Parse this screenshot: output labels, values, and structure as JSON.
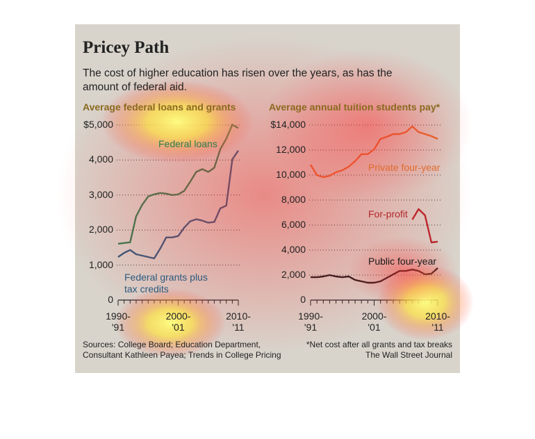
{
  "header": {
    "title": "Pricey Path",
    "subtitle": "The cost of higher education has risen over the years, as has the amount of federal aid."
  },
  "chart_data": [
    {
      "type": "line",
      "title": "Average federal loans and grants",
      "categories": [
        "1990-'91",
        null,
        null,
        null,
        null,
        null,
        null,
        null,
        null,
        null,
        "2000-'01",
        null,
        null,
        null,
        null,
        null,
        null,
        null,
        null,
        null,
        "2010-'11"
      ],
      "ylim": [
        0,
        5000
      ],
      "yticks": [
        0,
        {
          "value": 1000,
          "label": "1,000"
        },
        {
          "value": 2000,
          "label": "2,000"
        },
        {
          "value": 3000,
          "label": "3,000"
        },
        {
          "value": 4000,
          "label": "4,000"
        },
        {
          "value": 5000,
          "label": "$5,000"
        }
      ],
      "grid": true,
      "series": [
        {
          "name": "Federal loans",
          "color": "#2e7d4f",
          "values": [
            1610,
            1630,
            1650,
            2390,
            2720,
            2960,
            3020,
            3060,
            3040,
            3000,
            3020,
            3120,
            3380,
            3660,
            3740,
            3660,
            3780,
            4310,
            4610,
            5010,
            4910
          ]
        },
        {
          "name": "Federal grants plus tax credits",
          "color": "#2b5a7e",
          "values": [
            1230,
            1350,
            1430,
            1310,
            1270,
            1230,
            1190,
            1470,
            1790,
            1790,
            1830,
            2070,
            2250,
            2310,
            2270,
            2210,
            2230,
            2620,
            2700,
            4020,
            4270
          ]
        }
      ]
    },
    {
      "type": "line",
      "title": "Average annual tuition students pay*",
      "categories": [
        "1990-'91",
        null,
        null,
        null,
        null,
        null,
        null,
        null,
        null,
        null,
        "2000-'01",
        null,
        null,
        null,
        null,
        null,
        null,
        null,
        null,
        null,
        "2010-'11"
      ],
      "ylim": [
        0,
        14000
      ],
      "yticks": [
        0,
        {
          "value": 2000,
          "label": "2,000"
        },
        {
          "value": 4000,
          "label": "4,000"
        },
        {
          "value": 6000,
          "label": "6,000"
        },
        {
          "value": 8000,
          "label": "8,000"
        },
        {
          "value": 10000,
          "label": "10,000"
        },
        {
          "value": 12000,
          "label": "12,000"
        },
        {
          "value": 14000,
          "label": "$14,000"
        }
      ],
      "grid": true,
      "series": [
        {
          "name": "Private four-year",
          "color": "#e06a2c",
          "values": [
            10830,
            10000,
            9830,
            9940,
            10220,
            10390,
            10670,
            11110,
            11670,
            11670,
            12060,
            12890,
            13060,
            13280,
            13280,
            13440,
            13890,
            13440,
            13280,
            13110,
            12890
          ]
        },
        {
          "name": "For-profit",
          "color": "#b5262a",
          "values": [
            null,
            null,
            null,
            null,
            null,
            null,
            null,
            null,
            null,
            null,
            null,
            null,
            null,
            null,
            null,
            null,
            6440,
            7280,
            6780,
            4610,
            4670
          ]
        },
        {
          "name": "Public four-year",
          "color": "#1a1a1a",
          "values": [
            1830,
            1830,
            1890,
            2000,
            1890,
            1830,
            1890,
            1610,
            1500,
            1390,
            1390,
            1500,
            1780,
            2060,
            2330,
            2330,
            2440,
            2330,
            2060,
            2110,
            2560
          ]
        }
      ]
    }
  ],
  "footer": {
    "sources": "Sources: College Board; Education Department, Consultant Kathleen Payea; Trends in College Pricing",
    "note": "*Net cost after all grants and tax breaks",
    "credit": "The Wall Street Journal"
  }
}
